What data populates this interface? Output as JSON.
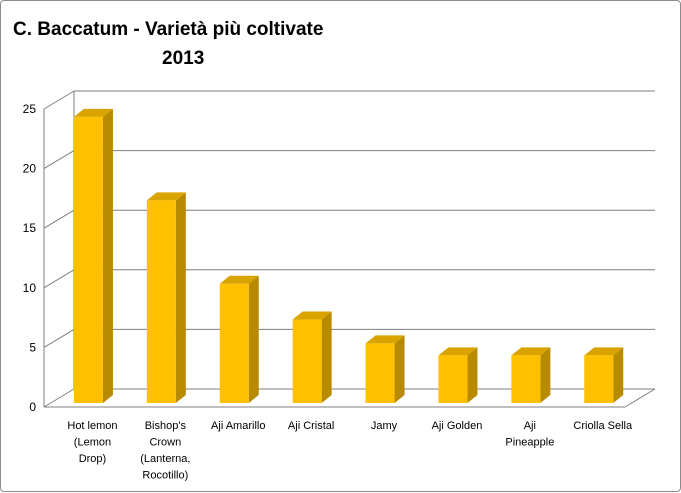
{
  "chart_data": {
    "type": "bar",
    "title_line1": "C. Baccatum - Varietà più coltivate",
    "title_line2": "2013",
    "categories": [
      [
        "Hot lemon",
        "(Lemon",
        "Drop)"
      ],
      [
        "Bishop's",
        "Crown",
        "(Lanterna,",
        "Rocotillo)"
      ],
      [
        "Aji Amarillo"
      ],
      [
        "Aji Cristal"
      ],
      [
        "Jamy"
      ],
      [
        "Aji Golden"
      ],
      [
        "Aji",
        "Pineapple"
      ],
      [
        "Criolla Sella"
      ]
    ],
    "values": [
      24,
      17,
      10,
      7,
      5,
      4,
      4,
      4
    ],
    "ylim": [
      0,
      25
    ],
    "yticks": [
      0,
      5,
      10,
      15,
      20,
      25
    ],
    "grid": true,
    "legend": "none",
    "bar_color": "#ffc000",
    "bar_side_color": "#b88a00",
    "bar_top_color": "#d9a300",
    "grid_color": "#7f7f7f"
  }
}
